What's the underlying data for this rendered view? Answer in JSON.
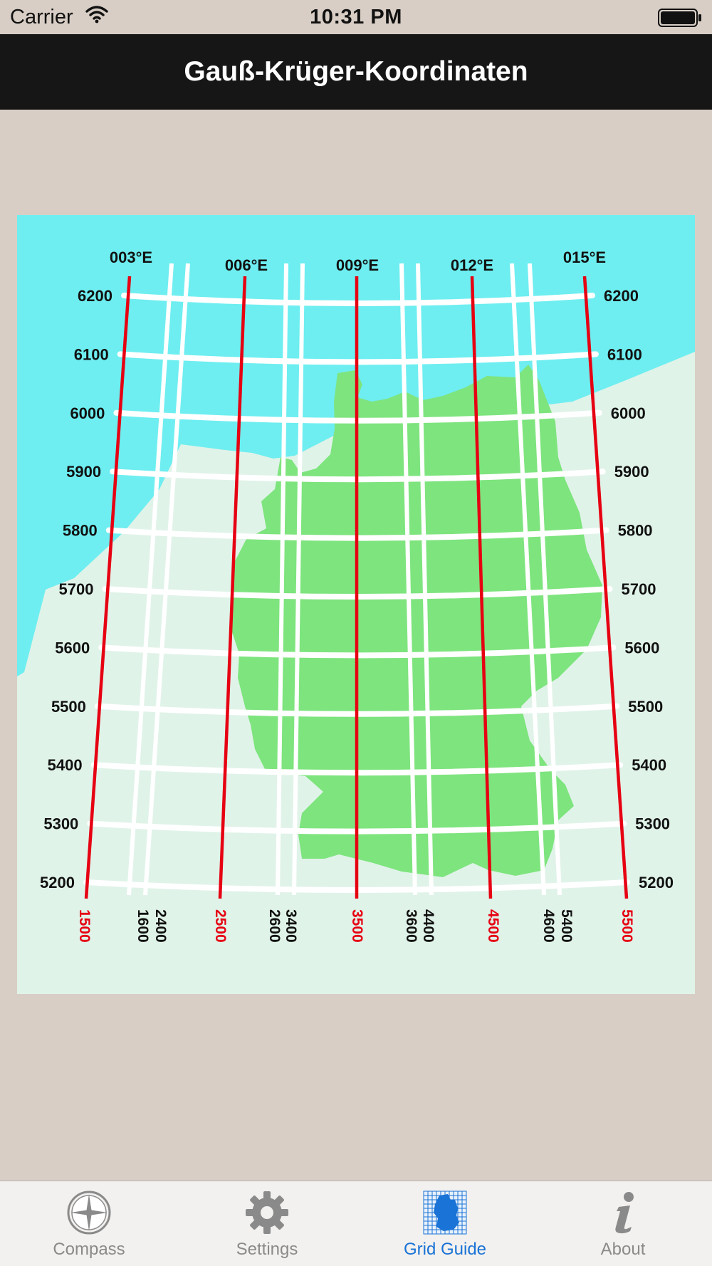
{
  "status_bar": {
    "carrier": "Carrier",
    "time": "10:31 PM"
  },
  "nav": {
    "title": "Gauß-Krüger-Koordinaten"
  },
  "map": {
    "meridians_top": [
      "003°E",
      "006°E",
      "009°E",
      "012°E",
      "015°E"
    ],
    "northing_left": [
      "6200",
      "6100",
      "6000",
      "5900",
      "5800",
      "5700",
      "5600",
      "5500",
      "5400",
      "5300",
      "5200"
    ],
    "northing_right": [
      "6200",
      "6100",
      "6000",
      "5900",
      "5800",
      "5700",
      "5600",
      "5500",
      "5400",
      "5300",
      "5200"
    ],
    "easting_red": [
      "1500",
      "2500",
      "3500",
      "4500",
      "5500"
    ],
    "easting_black_a": [
      "1600",
      "2600",
      "3600",
      "4600"
    ],
    "easting_black_b": [
      "2400",
      "3400",
      "4400",
      "5400"
    ],
    "colors": {
      "sea": "#6eeef0",
      "land": "#e0f3e9",
      "germany": "#7ee47e",
      "meridian": "#e60012",
      "grid": "#ffffff"
    }
  },
  "tabs": [
    {
      "label": "Compass",
      "icon": "compass-icon",
      "active": false
    },
    {
      "label": "Settings",
      "icon": "gear-icon",
      "active": false
    },
    {
      "label": "Grid Guide",
      "icon": "grid-map-icon",
      "active": true
    },
    {
      "label": "About",
      "icon": "info-icon",
      "active": false
    }
  ]
}
